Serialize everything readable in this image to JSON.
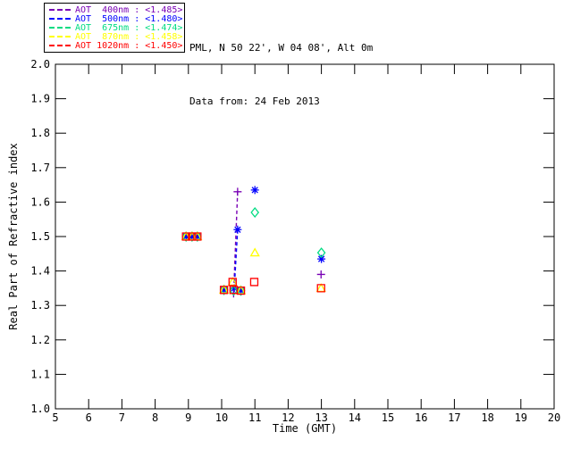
{
  "header": {
    "site_line": "PML, N 50 22', W 04 08', Alt 0m",
    "date_line": "Data from: 24 Feb 2013"
  },
  "legend": {
    "entries": [
      {
        "label": "AOT  400nm : <1.485>",
        "color": "#7800B4",
        "marker": "cross"
      },
      {
        "label": "AOT  500nm : <1.480>",
        "color": "#0000FF",
        "marker": "asterisk"
      },
      {
        "label": "AOT  675nm : <1.474>",
        "color": "#00DC82",
        "marker": "diamond"
      },
      {
        "label": "AOT  870nm : <1.458>",
        "color": "#FFFF00",
        "marker": "triangle"
      },
      {
        "label": "AOT 1020nm : <1.450>",
        "color": "#FF0000",
        "marker": "square"
      }
    ]
  },
  "chart_data": {
    "type": "scatter",
    "title": "",
    "xlabel": "Time (GMT)",
    "ylabel": "Real Part of Refractive index",
    "xlim": [
      5,
      20
    ],
    "ylim": [
      1.0,
      2.0
    ],
    "grid": false,
    "legend_position": "top-left-outside",
    "xticks": [
      "5",
      "6",
      "7",
      "8",
      "9",
      "10",
      "11",
      "12",
      "13",
      "14",
      "15",
      "16",
      "17",
      "18",
      "19",
      "20"
    ],
    "yticks": [
      "1.0",
      "1.1",
      "1.2",
      "1.3",
      "1.4",
      "1.5",
      "1.6",
      "1.7",
      "1.8",
      "1.9",
      "2.0"
    ],
    "series": [
      {
        "name": "AOT 400nm",
        "mean_label": "<1.485>",
        "marker": "cross",
        "color": "#7800B4",
        "points": [
          [
            8.93,
            1.5
          ],
          [
            9.11,
            1.5
          ],
          [
            9.27,
            1.5
          ],
          [
            10.07,
            1.345
          ],
          [
            10.36,
            1.335
          ],
          [
            10.48,
            1.63
          ],
          [
            10.58,
            1.343
          ],
          [
            12.99,
            1.39
          ]
        ]
      },
      {
        "name": "AOT 500nm",
        "mean_label": "<1.480>",
        "marker": "asterisk",
        "color": "#0000FF",
        "points": [
          [
            8.93,
            1.5
          ],
          [
            9.11,
            1.5
          ],
          [
            9.27,
            1.5
          ],
          [
            10.07,
            1.345
          ],
          [
            10.38,
            1.35
          ],
          [
            10.48,
            1.52
          ],
          [
            10.58,
            1.343
          ],
          [
            11.0,
            1.635
          ],
          [
            13.0,
            1.435
          ]
        ]
      },
      {
        "name": "AOT 675nm",
        "mean_label": "<1.474>",
        "marker": "diamond",
        "color": "#00DC82",
        "points": [
          [
            8.93,
            1.5
          ],
          [
            9.11,
            1.5
          ],
          [
            9.27,
            1.5
          ],
          [
            10.07,
            1.345
          ],
          [
            10.36,
            1.343
          ],
          [
            10.58,
            1.343
          ],
          [
            11.0,
            1.57
          ],
          [
            13.0,
            1.453
          ]
        ]
      },
      {
        "name": "AOT 870nm",
        "mean_label": "<1.458>",
        "marker": "triangle",
        "color": "#FFFF00",
        "points": [
          [
            8.93,
            1.5
          ],
          [
            9.11,
            1.5
          ],
          [
            9.27,
            1.5
          ],
          [
            10.07,
            1.345
          ],
          [
            10.33,
            1.368
          ],
          [
            10.58,
            1.343
          ],
          [
            11.0,
            1.453
          ],
          [
            12.99,
            1.35
          ]
        ]
      },
      {
        "name": "AOT 1020nm",
        "mean_label": "<1.450>",
        "marker": "square",
        "color": "#FF0000",
        "points": [
          [
            8.93,
            1.5
          ],
          [
            9.11,
            1.5
          ],
          [
            9.27,
            1.5
          ],
          [
            10.07,
            1.345
          ],
          [
            10.33,
            1.368
          ],
          [
            10.36,
            1.345
          ],
          [
            10.58,
            1.343
          ],
          [
            10.98,
            1.368
          ],
          [
            12.99,
            1.35
          ]
        ]
      }
    ],
    "connect_lines": [
      {
        "series": "AOT 400nm",
        "color": "#7800B4",
        "x1": 10.48,
        "y1": 1.63,
        "x2": 10.36,
        "y2": 1.335,
        "dashed": true
      },
      {
        "series": "AOT 500nm",
        "color": "#0000FF",
        "x1": 10.48,
        "y1": 1.52,
        "x2": 10.38,
        "y2": 1.35,
        "dashed": true
      }
    ]
  }
}
